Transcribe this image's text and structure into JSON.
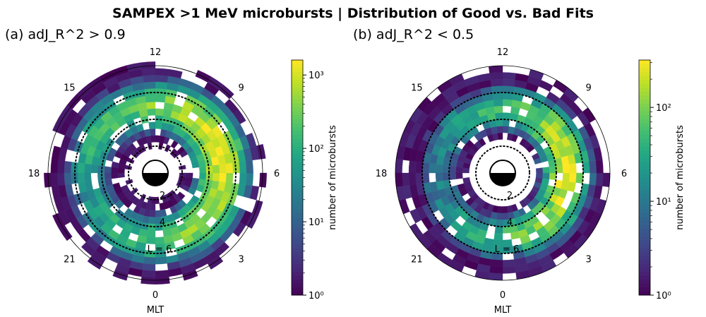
{
  "figure": {
    "title": "SAMPEX >1 MeV microbursts | Distribution of Good vs. Bad Fits"
  },
  "colors": {
    "colormap": "viridis",
    "background": "#ffffff",
    "bin_gap": "#ffffff",
    "earth_day": "#ffffff",
    "earth_night": "#000000",
    "contours": "#000000"
  },
  "chart_data": [
    {
      "type": "heatmap",
      "projection": "polar",
      "title": "(a) adJ_R^2 > 0.9",
      "angular_axis": {
        "label": "MLT",
        "tick_labels": [
          "0",
          "3",
          "6",
          "9",
          "12",
          "15",
          "18",
          "21"
        ],
        "tick_values_mlt": [
          0,
          3,
          6,
          9,
          12,
          15,
          18,
          21
        ],
        "orientation": "MLT 0 at bottom, 6 at right, 12 at top, 18 at left"
      },
      "radial_axis": {
        "quantity": "L",
        "range": [
          0,
          8
        ],
        "contours_L": [
          2,
          4,
          6
        ],
        "contour_labels": [
          "2",
          "4",
          "L = 6"
        ]
      },
      "colorbar": {
        "label": "number of microbursts",
        "scale": "log",
        "range": [
          1,
          1600
        ],
        "tick_values": [
          1,
          10,
          100,
          1000
        ],
        "tick_labels": [
          "10^0",
          "10^1",
          "10^2",
          "10^3"
        ]
      },
      "distribution": {
        "peak_count": 1500,
        "peak_mlt": 7,
        "peak_L": 5.0,
        "min_L": 1.8,
        "max_L": 8.0
      }
    },
    {
      "type": "heatmap",
      "projection": "polar",
      "title": "(b) adJ_R^2 < 0.5",
      "angular_axis": {
        "label": "MLT",
        "tick_labels": [
          "0",
          "3",
          "6",
          "9",
          "12",
          "15",
          "18",
          "21"
        ],
        "tick_values_mlt": [
          0,
          3,
          6,
          9,
          12,
          15,
          18,
          21
        ],
        "orientation": "MLT 0 at bottom, 6 at right, 12 at top, 18 at left"
      },
      "radial_axis": {
        "quantity": "L",
        "range": [
          0,
          8
        ],
        "contours_L": [
          2,
          4,
          6
        ],
        "contour_labels": [
          "2",
          "4",
          "L = 6"
        ]
      },
      "colorbar": {
        "label": "number of microbursts",
        "scale": "log",
        "range": [
          1,
          320
        ],
        "tick_values": [
          1,
          10,
          100
        ],
        "tick_labels": [
          "10^0",
          "10^1",
          "10^2"
        ]
      },
      "distribution": {
        "peak_count": 300,
        "peak_mlt": 6,
        "peak_L": 4.8,
        "min_L": 2.5,
        "max_L": 8.0
      }
    }
  ]
}
